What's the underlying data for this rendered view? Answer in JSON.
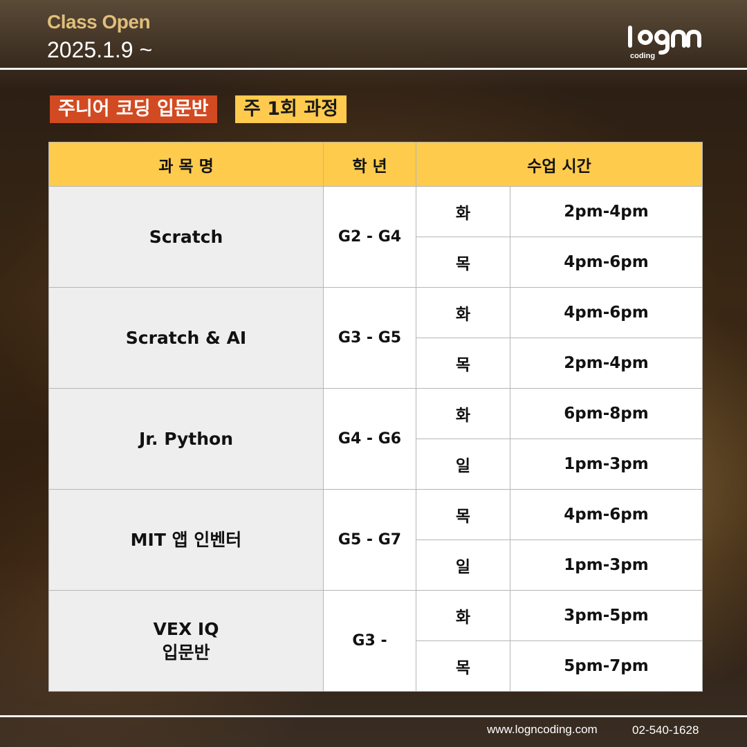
{
  "header": {
    "title": "Class Open",
    "date": "2025.1.9 ~",
    "logo_text": "coding"
  },
  "tags": {
    "course": "주니어 코딩 입문반",
    "frequency": "주 1회 과정"
  },
  "table": {
    "headers": [
      "과 목 명",
      "학 년",
      "수업 시간"
    ],
    "courses": [
      {
        "name": "Scratch",
        "grade": "G2 - G4",
        "slots": [
          {
            "day": "화",
            "time": "2pm-4pm"
          },
          {
            "day": "목",
            "time": "4pm-6pm"
          }
        ]
      },
      {
        "name": "Scratch & AI",
        "grade": "G3 - G5",
        "slots": [
          {
            "day": "화",
            "time": "4pm-6pm"
          },
          {
            "day": "목",
            "time": "2pm-4pm"
          }
        ]
      },
      {
        "name": "Jr. Python",
        "grade": "G4 - G6",
        "slots": [
          {
            "day": "화",
            "time": "6pm-8pm"
          },
          {
            "day": "일",
            "time": "1pm-3pm"
          }
        ]
      },
      {
        "name": "MIT 앱 인벤터",
        "grade": "G5 - G7",
        "slots": [
          {
            "day": "목",
            "time": "4pm-6pm"
          },
          {
            "day": "일",
            "time": "1pm-3pm"
          }
        ]
      },
      {
        "name_lines": [
          "VEX IQ",
          "입문반"
        ],
        "grade": "G3 -",
        "slots": [
          {
            "day": "화",
            "time": "3pm-5pm"
          },
          {
            "day": "목",
            "time": "5pm-7pm"
          }
        ]
      }
    ]
  },
  "footer": {
    "website": "www.logncoding.com",
    "phone": "02-540-1628"
  },
  "colors": {
    "header_accent": "#e0bf7a",
    "tag_red": "#d24a22",
    "tag_yellow": "#ffca4d",
    "table_header": "#ffcb4c",
    "subject_cell": "#eeeeee"
  }
}
